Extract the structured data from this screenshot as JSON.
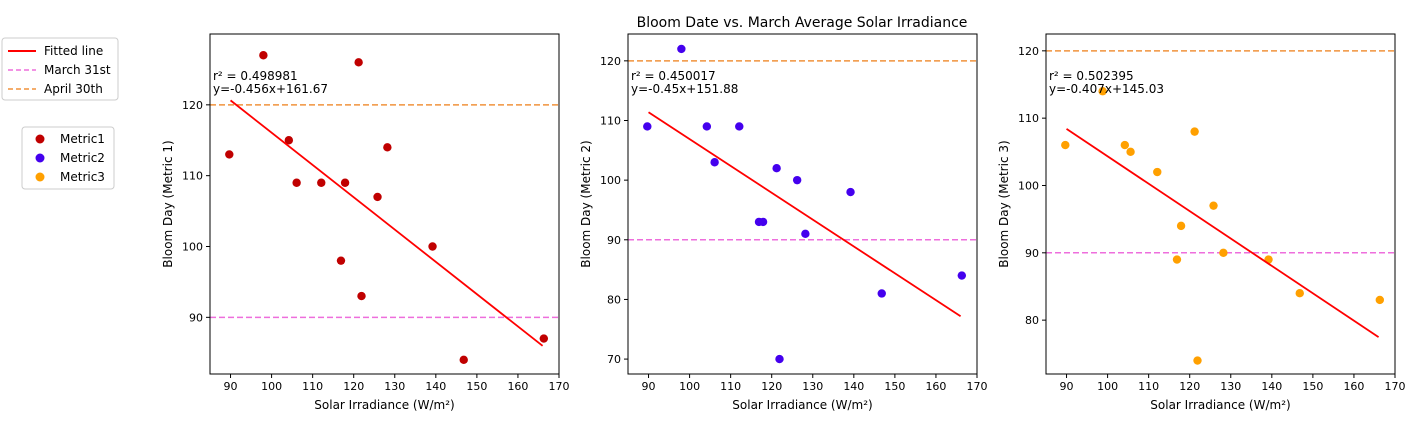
{
  "figure": {
    "title": "Bloom Date vs. March Average Solar Irradiance"
  },
  "legends": {
    "lines": [
      {
        "label": "Fitted line",
        "color": "#ff0000",
        "dash": "solid"
      },
      {
        "label": "March 31st",
        "color": "#ee6edc",
        "dash": "dashed"
      },
      {
        "label": "April 30th",
        "color": "#f0923c",
        "dash": "dashed"
      }
    ],
    "markers": [
      {
        "label": "Metric1",
        "color": "#c00000"
      },
      {
        "label": "Metric2",
        "color": "#4400ee"
      },
      {
        "label": "Metric3",
        "color": "#ffa000"
      }
    ]
  },
  "chart_data": [
    {
      "type": "scatter",
      "xlabel": "Solar Irradiance (W/m²)",
      "ylabel": "Bloom Day (Metric 1)",
      "xlim": [
        85,
        170
      ],
      "ylim": [
        82,
        130
      ],
      "xticks": [
        90,
        100,
        110,
        120,
        130,
        140,
        150,
        160,
        170
      ],
      "yticks": [
        90,
        100,
        110,
        120
      ],
      "point_color": "#c00000",
      "r2_text": "r² = 0.498981",
      "eq_text": "y=-0.456x+161.67",
      "fit": {
        "slope": -0.456,
        "intercept": 161.67,
        "x_range": [
          90,
          166
        ]
      },
      "hlines": [
        {
          "y": 90,
          "color": "#ee6edc"
        },
        {
          "y": 120,
          "color": "#f0923c"
        }
      ],
      "x": [
        89.7,
        98.0,
        104.2,
        106.1,
        112.1,
        116.9,
        117.9,
        121.2,
        121.9,
        125.8,
        128.2,
        139.2,
        146.8,
        166.3
      ],
      "y": [
        113,
        127,
        115,
        109,
        109,
        98,
        109,
        126,
        93,
        107,
        114,
        100,
        84,
        87
      ]
    },
    {
      "type": "scatter",
      "xlabel": "Solar Irradiance (W/m²)",
      "ylabel": "Bloom Day (Metric 2)",
      "xlim": [
        85,
        170
      ],
      "ylim": [
        67.5,
        124.5
      ],
      "xticks": [
        90,
        100,
        110,
        120,
        130,
        140,
        150,
        160,
        170
      ],
      "yticks": [
        70,
        80,
        90,
        100,
        110,
        120
      ],
      "point_color": "#4400ee",
      "r2_text": "r² = 0.450017",
      "eq_text": "y=-0.45x+151.88",
      "fit": {
        "slope": -0.45,
        "intercept": 151.88,
        "x_range": [
          90,
          166
        ]
      },
      "hlines": [
        {
          "y": 90,
          "color": "#ee6edc"
        },
        {
          "y": 120,
          "color": "#f0923c"
        }
      ],
      "x": [
        89.7,
        98.0,
        104.2,
        106.1,
        112.1,
        116.9,
        117.9,
        121.2,
        121.9,
        126.2,
        128.2,
        139.2,
        146.8,
        166.3
      ],
      "y": [
        109,
        122,
        109,
        103,
        109,
        93,
        93,
        102,
        70,
        100,
        91,
        98,
        81,
        84
      ]
    },
    {
      "type": "scatter",
      "xlabel": "Solar Irradiance (W/m²)",
      "ylabel": "Bloom Day (Metric 3)",
      "xlim": [
        85,
        170
      ],
      "ylim": [
        72,
        122.5
      ],
      "xticks": [
        90,
        100,
        110,
        120,
        130,
        140,
        150,
        160,
        170
      ],
      "yticks": [
        80,
        90,
        100,
        110,
        120
      ],
      "point_color": "#ffa000",
      "r2_text": "r² = 0.502395",
      "eq_text": "y=-0.407x+145.03",
      "fit": {
        "slope": -0.407,
        "intercept": 145.03,
        "x_range": [
          90,
          166
        ]
      },
      "hlines": [
        {
          "y": 90,
          "color": "#ee6edc"
        },
        {
          "y": 120,
          "color": "#f0923c"
        }
      ],
      "x": [
        89.7,
        98.8,
        104.2,
        105.6,
        112.1,
        116.9,
        117.9,
        121.2,
        121.9,
        125.8,
        128.2,
        139.2,
        146.8,
        166.3
      ],
      "y": [
        106,
        114,
        106,
        105,
        102,
        89,
        94,
        108,
        74,
        97,
        90,
        89,
        84,
        83
      ]
    }
  ]
}
